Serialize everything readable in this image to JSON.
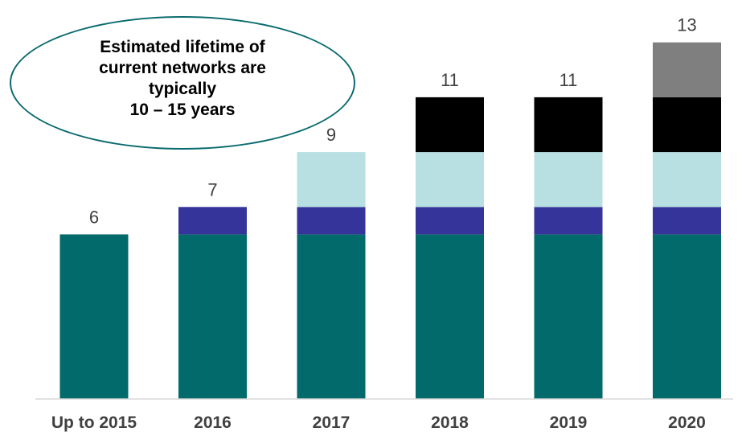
{
  "annotation": "Estimated lifetime of\ncurrent networks are\ntypically\n10 – 15 years",
  "chart_data": {
    "type": "bar",
    "stacked": true,
    "categories": [
      "Up to 2015",
      "2016",
      "2017",
      "2018",
      "2019",
      "2020"
    ],
    "series": [
      {
        "color": "#026a6a",
        "values": [
          6,
          6,
          6,
          6,
          6,
          6
        ]
      },
      {
        "color": "#34349a",
        "values": [
          0,
          1,
          1,
          1,
          1,
          1
        ]
      },
      {
        "color": "#b8dfe2",
        "values": [
          0,
          0,
          2,
          2,
          2,
          2
        ]
      },
      {
        "color": "#000000",
        "values": [
          0,
          0,
          0,
          2,
          2,
          2
        ]
      },
      {
        "color": "#7f7f7f",
        "values": [
          0,
          0,
          0,
          0,
          0,
          2
        ]
      }
    ],
    "totals": [
      6,
      7,
      9,
      11,
      11,
      13
    ],
    "ylim": [
      0,
      13
    ],
    "grid": false,
    "legend": false
  }
}
